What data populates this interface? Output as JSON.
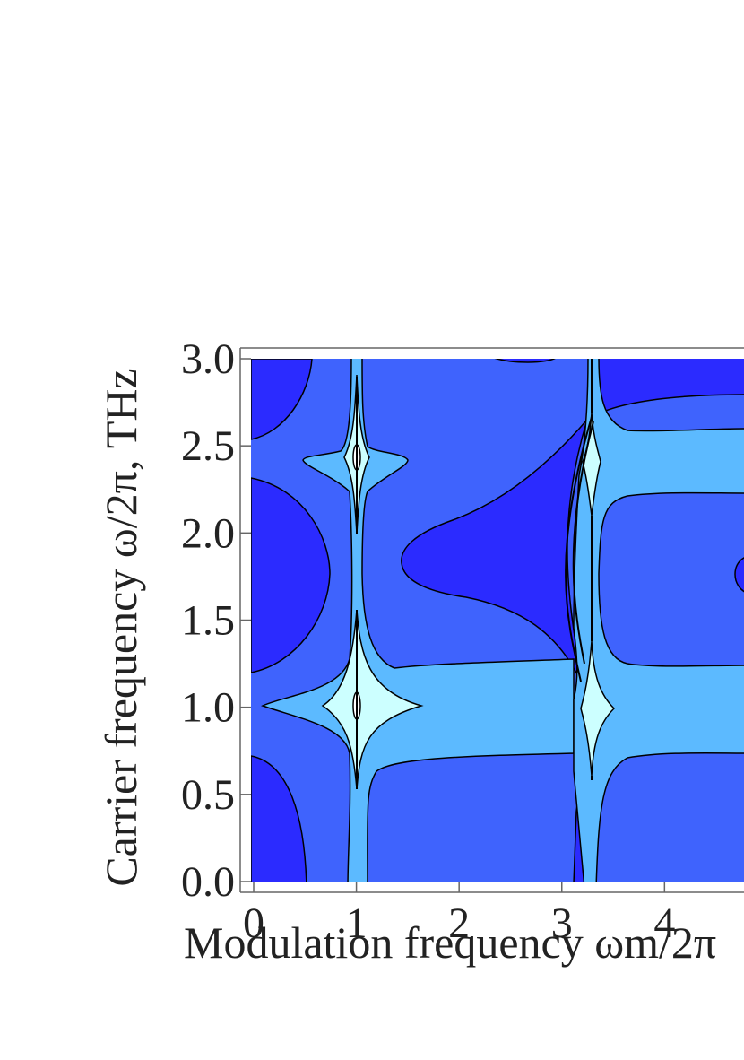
{
  "chart_data": {
    "type": "contour",
    "x_label": "Modulation frequency ωm/2π",
    "y_label": "Carrier frequency ω/2π, THz",
    "xlim": [
      0,
      4.8
    ],
    "ylim": [
      0,
      3
    ],
    "xticks": [
      0,
      1,
      2,
      3,
      4
    ],
    "yticks": [
      {
        "value": 0,
        "label": "0.0"
      },
      0.5,
      {
        "value": 1,
        "label": "1.0"
      },
      1.5,
      {
        "value": 2,
        "label": "2.0"
      },
      2.5,
      {
        "value": 3,
        "label": "3.0"
      }
    ],
    "colors": [
      "#2b2bff",
      "#3f63fd",
      "#5cbaff",
      "#ccffff",
      "#ffffff"
    ]
  }
}
